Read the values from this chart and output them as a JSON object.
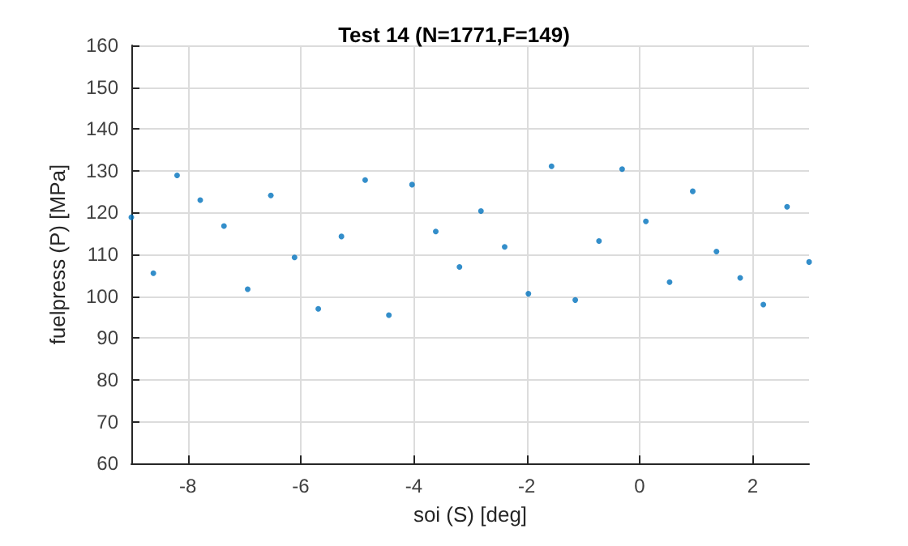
{
  "chart_data": {
    "type": "scatter",
    "title": "Test 14 (N=1771,F=149)",
    "xlabel": "soi (S) [deg]",
    "ylabel": "fuelpress (P) [MPa]",
    "x": [
      -9.0,
      -8.61,
      -8.19,
      -7.78,
      -7.36,
      -6.94,
      -6.53,
      -6.11,
      -5.69,
      -5.28,
      -4.86,
      -4.44,
      -4.03,
      -3.61,
      -3.19,
      -2.81,
      -2.39,
      -1.97,
      -1.56,
      -1.14,
      -0.72,
      -0.31,
      0.11,
      0.53,
      0.94,
      1.36,
      1.78,
      2.19,
      2.61,
      3.0
    ],
    "values": [
      118.9,
      105.5,
      128.9,
      123,
      116.8,
      101.7,
      124.1,
      109.3,
      97,
      114.3,
      127.8,
      95.5,
      126.7,
      115.5,
      107,
      120.4,
      111.8,
      100.6,
      131.1,
      99.1,
      113.2,
      130.4,
      117.9,
      103.4,
      125.1,
      110.7,
      104.4,
      98,
      121.4,
      108.2
    ],
    "color": "#0072bd",
    "marker": "circle",
    "grid": true,
    "xlim": [
      -9,
      3
    ],
    "xticks": [
      -8,
      -6,
      -4,
      -2,
      0,
      2
    ],
    "ylim": [
      60,
      160
    ],
    "yticks": [
      60,
      70,
      80,
      90,
      100,
      110,
      120,
      130,
      140,
      150,
      160
    ]
  }
}
